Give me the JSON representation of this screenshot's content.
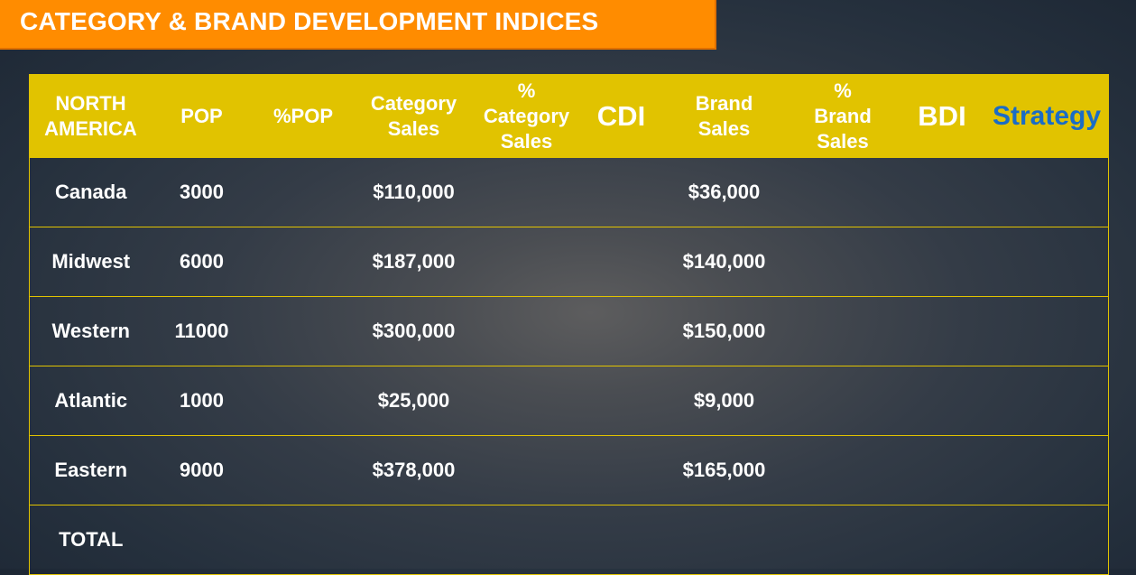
{
  "title": "CATEGORY & BRAND DEVELOPMENT INDICES",
  "colors": {
    "title_bg": "#ff8c00",
    "header_bg": "#e1c300",
    "strategy_text": "#1a6cc6"
  },
  "table": {
    "headers": [
      {
        "l1": "NORTH",
        "l2": "AMERICA"
      },
      {
        "l1": "POP"
      },
      {
        "l1": "%POP"
      },
      {
        "l1": "Category",
        "l2": "Sales"
      },
      {
        "l1": "%",
        "l2": "Category",
        "l3": "Sales"
      },
      {
        "l1": "CDI"
      },
      {
        "l1": "Brand",
        "l2": "Sales"
      },
      {
        "l1": "%",
        "l2": "Brand",
        "l3": "Sales"
      },
      {
        "l1": "BDI"
      },
      {
        "l1": "Strategy"
      }
    ],
    "rows": [
      {
        "region": "Canada",
        "pop": "3000",
        "pct_pop": "",
        "cat_sales": "$110,000",
        "pct_cat_sales": "",
        "cdi": "",
        "brand_sales": "$36,000",
        "pct_brand_sales": "",
        "bdi": "",
        "strategy": ""
      },
      {
        "region": "Midwest",
        "pop": "6000",
        "pct_pop": "",
        "cat_sales": "$187,000",
        "pct_cat_sales": "",
        "cdi": "",
        "brand_sales": "$140,000",
        "pct_brand_sales": "",
        "bdi": "",
        "strategy": ""
      },
      {
        "region": "Western",
        "pop": "11000",
        "pct_pop": "",
        "cat_sales": "$300,000",
        "pct_cat_sales": "",
        "cdi": "",
        "brand_sales": "$150,000",
        "pct_brand_sales": "",
        "bdi": "",
        "strategy": ""
      },
      {
        "region": "Atlantic",
        "pop": "1000",
        "pct_pop": "",
        "cat_sales": "$25,000",
        "pct_cat_sales": "",
        "cdi": "",
        "brand_sales": "$9,000",
        "pct_brand_sales": "",
        "bdi": "",
        "strategy": ""
      },
      {
        "region": "Eastern",
        "pop": "9000",
        "pct_pop": "",
        "cat_sales": "$378,000",
        "pct_cat_sales": "",
        "cdi": "",
        "brand_sales": "$165,000",
        "pct_brand_sales": "",
        "bdi": "",
        "strategy": ""
      },
      {
        "region": "TOTAL",
        "pop": "",
        "pct_pop": "",
        "cat_sales": "",
        "pct_cat_sales": "",
        "cdi": "",
        "brand_sales": "",
        "pct_brand_sales": "",
        "bdi": "",
        "strategy": ""
      }
    ]
  }
}
